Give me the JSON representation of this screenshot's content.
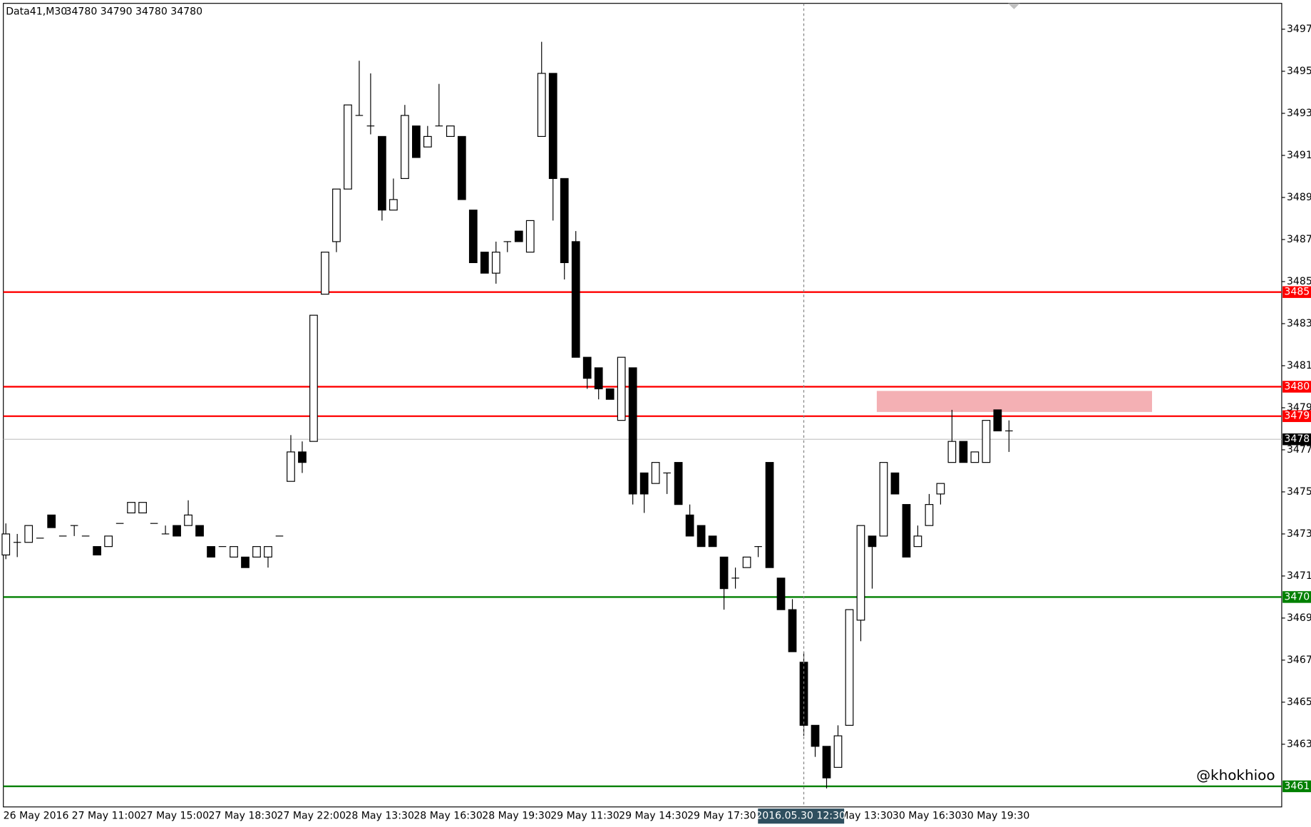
{
  "chart_data": {
    "type": "candlestick",
    "title": "Data41,M30",
    "subtitle": "34780 34790 34780 34780",
    "annotation": "@khokhioo",
    "crosshair_label": "2016.05.30 12:30",
    "categories": [
      "26 May 2016",
      null,
      null,
      null,
      null,
      null,
      "27 May 11:00",
      null,
      null,
      null,
      null,
      null,
      "27 May 15:00",
      null,
      null,
      null,
      null,
      null,
      "27 May 18:30",
      null,
      null,
      null,
      null,
      null,
      "27 May 22:00",
      null,
      null,
      null,
      null,
      null,
      "28 May 13:30",
      null,
      null,
      null,
      null,
      null,
      "28 May 16:30",
      null,
      null,
      null,
      null,
      null,
      "28 May 19:30",
      null,
      null,
      null,
      null,
      null,
      "29 May 11:30",
      null,
      null,
      null,
      null,
      null,
      "29 May 14:30",
      null,
      null,
      null,
      null,
      null,
      "29 May 17:30",
      null,
      null,
      null,
      null,
      null,
      null,
      null,
      null,
      null,
      null,
      null,
      "30 May 13:30",
      null,
      null,
      null,
      null,
      null,
      "30 May 16:30",
      null,
      null,
      null,
      null,
      null,
      "30 May 19:30",
      null,
      null,
      null,
      null
    ],
    "open": [
      3472,
      3472.6,
      3472.6,
      3472.8,
      3473.9,
      3472.9,
      3473.4,
      3472.9,
      3472.4,
      3472.4,
      3473.5,
      3474,
      3474,
      3473.5,
      3473,
      3473.4,
      3473.4,
      3473.4,
      3472.4,
      3472.4,
      3471.9,
      3471.9,
      3471.9,
      3471.9,
      3472.9,
      3475.5,
      3476.9,
      3477.4,
      3484.4,
      3486.9,
      3489.4,
      3492.9,
      3492.4,
      3491.9,
      3488.4,
      3489.9,
      3492.4,
      3491.4,
      3492.4,
      3491.9,
      3491.9,
      3488.4,
      3486.4,
      3485.4,
      3486.9,
      3487.4,
      3486.4,
      3491.9,
      3494.9,
      3489.9,
      3486.9,
      3481.4,
      3480.9,
      3479.9,
      3478.4,
      3480.9,
      3475.9,
      3475.4,
      3475.9,
      3476.4,
      3473.9,
      3473.4,
      3472.9,
      3471.9,
      3470.9,
      3471.4,
      3472.4,
      3476.4,
      3470.9,
      3469.4,
      3466.9,
      3463.9,
      3462.9,
      3461.9,
      3463.9,
      3468.9,
      3472.9,
      3472.9,
      3475.9,
      3474.4,
      3472.4,
      3473.4,
      3474.9,
      3476.4,
      3477.4,
      3476.4,
      3476.4,
      3478.9,
      3477.9
    ],
    "high": [
      3473.5,
      3473,
      3473.4,
      3472.8,
      3473.9,
      3472.9,
      3473.4,
      3472.9,
      3472.4,
      3472.9,
      3473.5,
      3474.5,
      3474.5,
      3473.5,
      3473.4,
      3473.4,
      3474.6,
      3473.4,
      3472.4,
      3472.4,
      3472.4,
      3471.9,
      3472.4,
      3472.4,
      3472.9,
      3477.7,
      3477.4,
      3483.4,
      3486.4,
      3489.4,
      3493.4,
      3495.5,
      3494.9,
      3491.9,
      3489.9,
      3493.4,
      3492.4,
      3492.4,
      3494.4,
      3492.4,
      3491.9,
      3488.4,
      3486.4,
      3486.9,
      3486.9,
      3487.4,
      3487.9,
      3496.4,
      3494.9,
      3489.9,
      3487.4,
      3481.4,
      3480.9,
      3479.9,
      3481.4,
      3480.9,
      3475.9,
      3476.4,
      3475.9,
      3476.4,
      3474.4,
      3473.4,
      3472.9,
      3471.9,
      3471.4,
      3471.9,
      3472.4,
      3476.4,
      3470.9,
      3469.9,
      3467.4,
      3463.9,
      3462.9,
      3463.9,
      3469.4,
      3473.4,
      3472.9,
      3476.4,
      3475.9,
      3474.4,
      3473.4,
      3474.9,
      3475.4,
      3478.9,
      3477.4,
      3476.9,
      3478.4,
      3478.9,
      3478.4
    ],
    "low": [
      3471.8,
      3471.9,
      3472.6,
      3472.8,
      3473.3,
      3472.9,
      3472.9,
      3472.9,
      3472,
      3472.4,
      3473.5,
      3474,
      3474,
      3473.5,
      3473,
      3472.9,
      3473.4,
      3472.9,
      3471.9,
      3472.4,
      3471.9,
      3471.4,
      3471.9,
      3471.4,
      3472.9,
      3475.5,
      3475.9,
      3477.4,
      3484.4,
      3486.4,
      3489.4,
      3492.9,
      3492,
      3487.9,
      3488.4,
      3489.9,
      3490.9,
      3491.4,
      3492.4,
      3491.9,
      3488.9,
      3485.9,
      3485.4,
      3484.9,
      3486.4,
      3486.9,
      3486.4,
      3491.9,
      3487.9,
      3485.1,
      3481.4,
      3479.9,
      3479.4,
      3479.4,
      3478.4,
      3474.4,
      3474,
      3475.4,
      3474.9,
      3474.4,
      3472.9,
      3472.4,
      3472.4,
      3469.4,
      3470.4,
      3471.4,
      3471.9,
      3471.4,
      3469.4,
      3467.4,
      3463.4,
      3462.4,
      3460.9,
      3461.9,
      3463.9,
      3467.9,
      3470.4,
      3472.9,
      3474.9,
      3471.9,
      3472.4,
      3473.4,
      3474.4,
      3476.4,
      3476.4,
      3476.4,
      3476.4,
      3477.9,
      3476.9
    ],
    "close": [
      3473,
      3472.6,
      3473.4,
      3472.8,
      3473.3,
      3472.9,
      3473.4,
      3472.9,
      3472,
      3472.9,
      3473.5,
      3474.5,
      3474.5,
      3473.5,
      3473,
      3472.9,
      3473.9,
      3472.9,
      3471.9,
      3472.4,
      3472.4,
      3471.4,
      3472.4,
      3472.4,
      3472.9,
      3476.9,
      3476.4,
      3483.4,
      3486.4,
      3489.4,
      3493.4,
      3492.9,
      3492.4,
      3488.4,
      3488.9,
      3492.9,
      3490.9,
      3491.9,
      3492.4,
      3492.4,
      3488.9,
      3485.9,
      3485.4,
      3486.4,
      3486.9,
      3486.9,
      3487.9,
      3494.9,
      3489.9,
      3485.9,
      3481.4,
      3480.4,
      3479.9,
      3479.4,
      3481.4,
      3474.9,
      3474.9,
      3476.4,
      3475.9,
      3474.4,
      3472.9,
      3472.4,
      3472.4,
      3470.4,
      3470.9,
      3471.9,
      3472.4,
      3471.4,
      3469.4,
      3467.4,
      3463.9,
      3462.9,
      3461.4,
      3463.4,
      3469.4,
      3473.4,
      3472.4,
      3476.4,
      3474.9,
      3471.9,
      3472.9,
      3474.4,
      3475.4,
      3477.4,
      3476.4,
      3476.9,
      3478.4,
      3477.9,
      3477.9
    ],
    "up_color": "#ffffff",
    "down_color": "#000000",
    "ylim": [
      3460.02,
      3498.23
    ],
    "yticks": [
      3497,
      3495,
      3493,
      3491,
      3489,
      3487,
      3485,
      3483,
      3481,
      3479,
      3477,
      3475,
      3473,
      3471,
      3469,
      3467,
      3465,
      3463
    ],
    "hlines": [
      {
        "value": 3484.5,
        "label": "3485",
        "color": "#ff0000"
      },
      {
        "value": 3480,
        "label": "3480",
        "color": "#ff0000"
      },
      {
        "value": 3478.6,
        "label": "3479",
        "color": "#ff0000"
      },
      {
        "value": 3477.5,
        "label": "3478",
        "color": "#c0c0c0"
      },
      {
        "value": 3470,
        "label": "3470",
        "color": "#008000"
      },
      {
        "value": 3461,
        "label": "3461",
        "color": "#008000"
      }
    ],
    "zone": {
      "from": 3478.8,
      "to": 3479.8,
      "color": "#f4b0b4"
    }
  }
}
